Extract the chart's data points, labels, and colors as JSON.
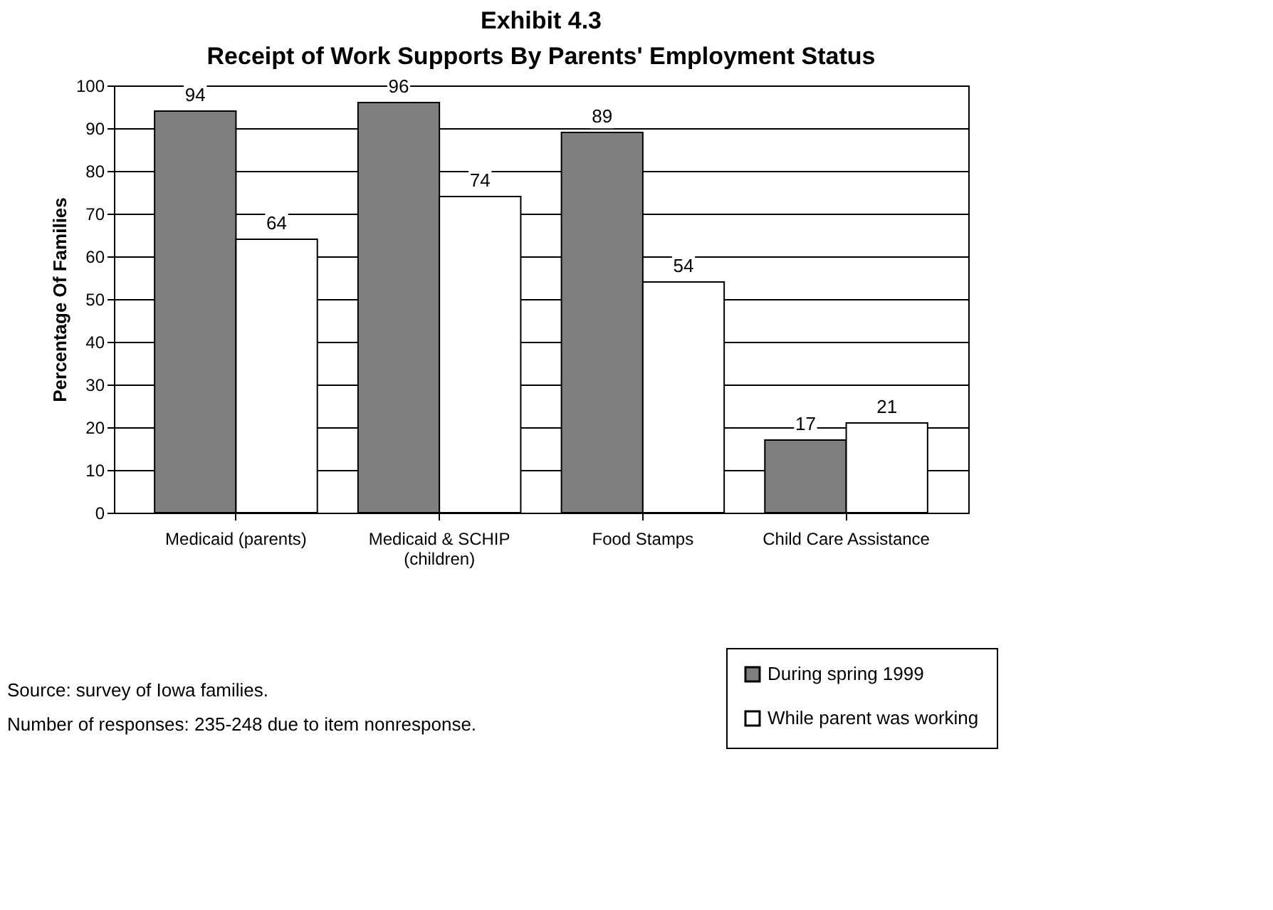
{
  "chart_data": {
    "type": "bar",
    "title": "Exhibit 4.3",
    "subtitle": "Receipt of Work Supports By Parents' Employment Status",
    "ylabel": "Percentage Of Families",
    "categories": [
      "Medicaid (parents)",
      "Medicaid & SCHIP\n(children)",
      "Food Stamps",
      "Child Care Assistance"
    ],
    "series": [
      {
        "name": "During spring 1999",
        "color": "#7f7f7f",
        "values": [
          94,
          96,
          89,
          17
        ]
      },
      {
        "name": "While parent was working",
        "color": "#ffffff",
        "values": [
          64,
          74,
          54,
          21
        ]
      }
    ],
    "ylim": [
      0,
      100
    ],
    "yticks": [
      0,
      10,
      20,
      30,
      40,
      50,
      60,
      70,
      80,
      90,
      100
    ],
    "grid": "y",
    "legend": "bottom right",
    "data_labels": true,
    "annotations": [
      "Source: survey of Iowa families.",
      "Number of responses: 235-248 due to item nonresponse."
    ]
  }
}
